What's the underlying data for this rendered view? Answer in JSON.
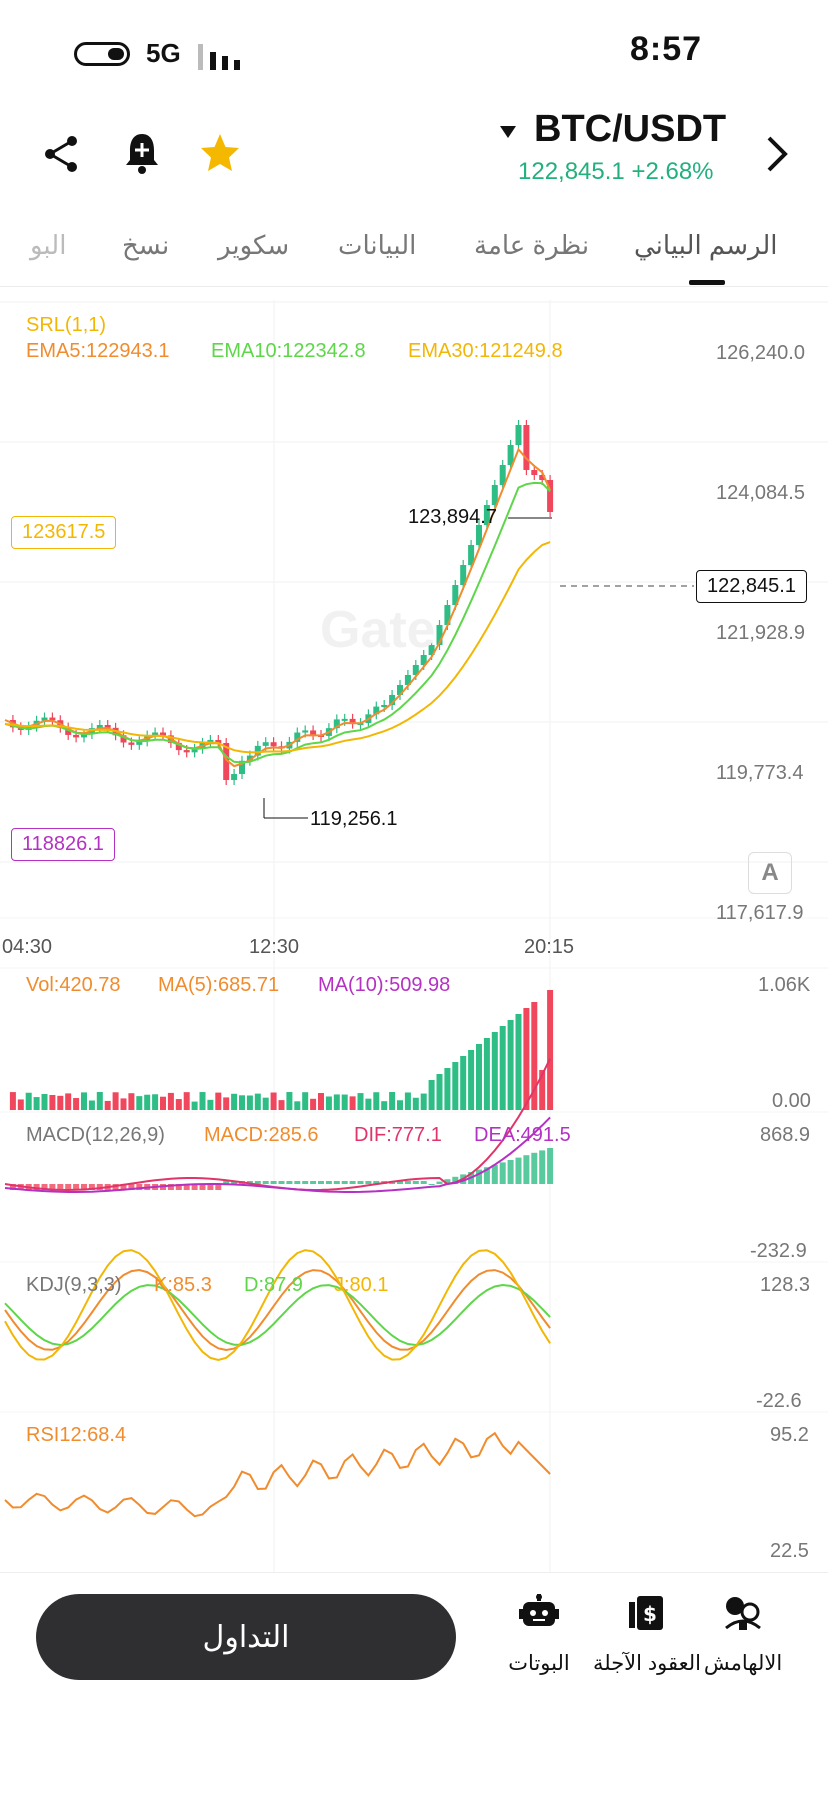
{
  "status_bar": {
    "time": "8:57",
    "network": "5G"
  },
  "header": {
    "title": "BTC/USDT",
    "price_change": "122,845.1 +2.68%"
  },
  "tabs": [
    {
      "label": "الرسم البياني",
      "active": true
    },
    {
      "label": "نظرة عامة"
    },
    {
      "label": "البيانات"
    },
    {
      "label": "سكوير"
    },
    {
      "label": "نسخ"
    },
    {
      "label": "البو"
    }
  ],
  "main_chart": {
    "indicators": {
      "srl": "SRL(1,1)",
      "ema5": "EMA5:122943.1",
      "ema10": "EMA10:122342.8",
      "ema30": "EMA30:121249.8"
    },
    "y_axis": [
      "126,240.0",
      "124,084.5",
      "121,928.9",
      "119,773.4",
      "117,617.9"
    ],
    "x_axis": [
      "04:30",
      "12:30",
      "20:15"
    ],
    "high_label": "123,894.7",
    "low_label": "119,256.1",
    "current_price": "122,845.1",
    "left_box_top": "123617.5",
    "left_box_bottom": "118826.1",
    "watermark": "Gate",
    "colors": {
      "up": "#2ebd85",
      "down": "#f0475d",
      "ema5": "#f08c2e",
      "ema10": "#5ed64a",
      "ema30": "#f2b705"
    }
  },
  "volume": {
    "vol": "Vol:420.78",
    "ma5": "MA(5):685.71",
    "ma10": "MA(10):509.98",
    "y_axis": [
      "1.06K",
      "0.00"
    ]
  },
  "macd": {
    "name": "MACD(12,26,9)",
    "macd": "MACD:285.6",
    "dif": "DIF:777.1",
    "dea": "DEA:491.5",
    "y_axis": [
      "868.9",
      "-232.9"
    ]
  },
  "kdj": {
    "name": "KDJ(9,3,3)",
    "k": "K:85.3",
    "d": "D:87.9",
    "j": "J:80.1",
    "y_axis": [
      "128.3",
      "-22.6"
    ]
  },
  "rsi": {
    "name": "RSI12:68.4",
    "y_axis": [
      "95.2",
      "22.5"
    ]
  },
  "bottom_nav": {
    "trade_button": "التداول",
    "items": [
      {
        "label": "البوتات",
        "icon": "robot-icon"
      },
      {
        "label": "العقود الآجلة",
        "icon": "futures-icon"
      },
      {
        "label": "الالهامش",
        "icon": "inspiration-icon"
      }
    ]
  }
}
